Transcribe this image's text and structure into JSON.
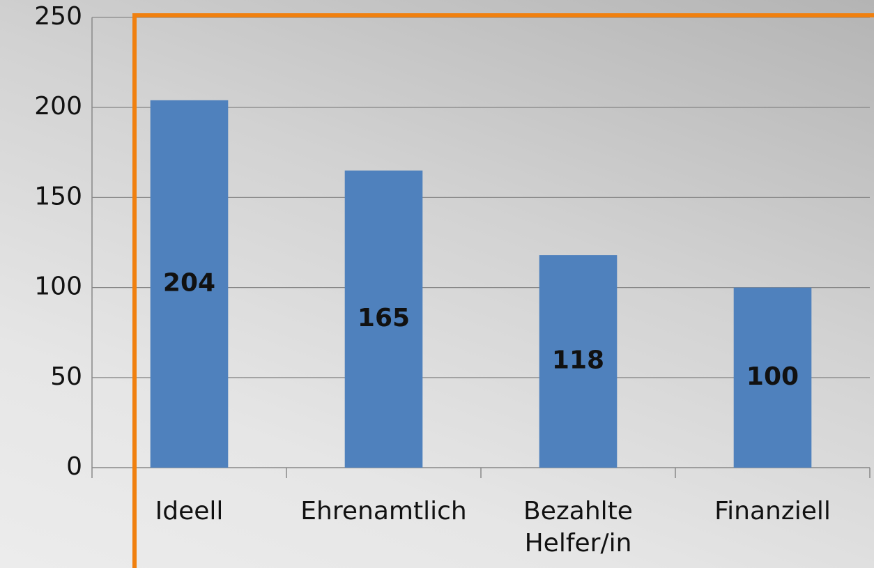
{
  "chart_data": {
    "type": "bar",
    "categories": [
      "Ideell",
      "Ehrenamtlich",
      "Bezahlte Helfer/in",
      "Finanziell"
    ],
    "values": [
      204,
      165,
      118,
      100
    ],
    "color": "#4f81bd",
    "ylim": [
      0,
      250
    ],
    "yticks": [
      0,
      50,
      100,
      150,
      200,
      250
    ],
    "grid": true
  }
}
